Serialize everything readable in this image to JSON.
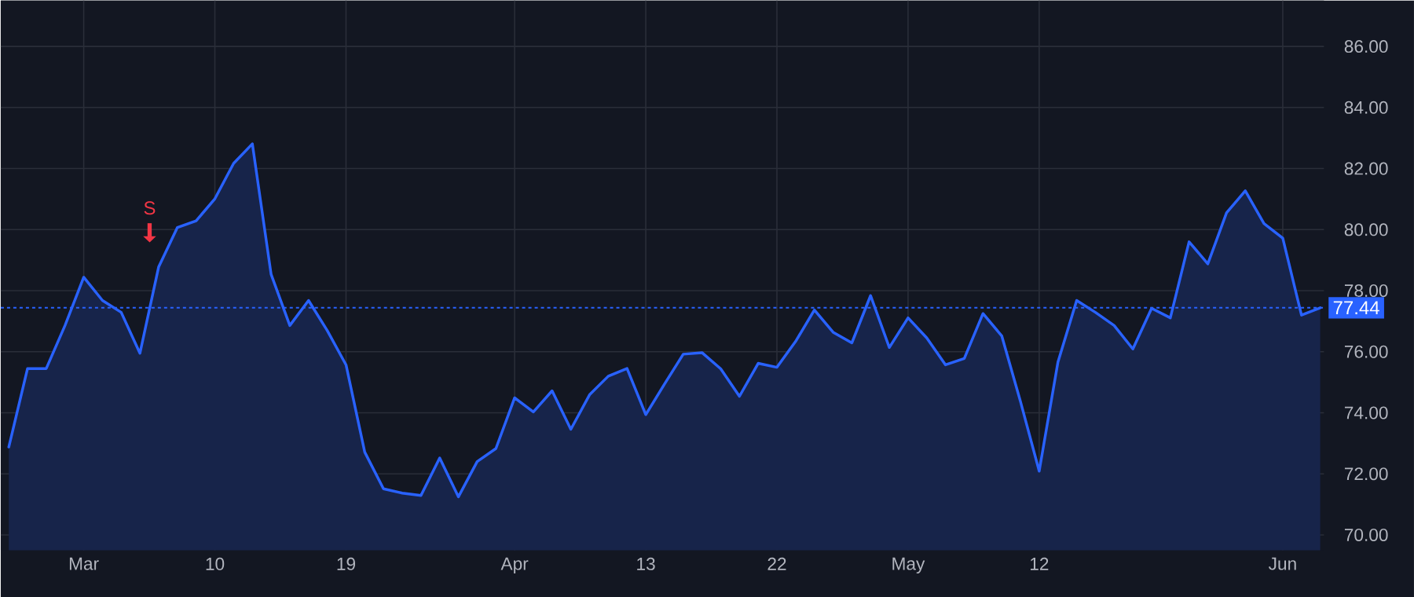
{
  "chart_data": {
    "type": "area",
    "color": "#2962ff",
    "categories": [
      null,
      null,
      null,
      null,
      "Mar",
      null,
      null,
      null,
      null,
      null,
      null,
      "10",
      null,
      null,
      null,
      null,
      null,
      null,
      "19",
      null,
      null,
      null,
      null,
      null,
      null,
      null,
      null,
      "Apr",
      null,
      null,
      null,
      null,
      null,
      null,
      "13",
      null,
      null,
      null,
      null,
      null,
      null,
      "22",
      null,
      null,
      null,
      null,
      null,
      null,
      "May",
      null,
      null,
      null,
      null,
      null,
      null,
      "12",
      null,
      null,
      null,
      null,
      null,
      null,
      null,
      null,
      null,
      null,
      null,
      null,
      "Jun",
      null,
      null
    ],
    "values": [
      72.88,
      75.45,
      75.45,
      76.86,
      78.44,
      77.68,
      77.29,
      75.95,
      78.78,
      80.07,
      80.29,
      81.01,
      82.17,
      82.81,
      78.54,
      76.86,
      77.68,
      76.69,
      75.57,
      72.71,
      71.51,
      71.37,
      71.29,
      72.52,
      71.25,
      72.4,
      72.83,
      74.49,
      74.03,
      74.72,
      73.46,
      74.59,
      75.2,
      75.45,
      73.94,
      74.94,
      75.92,
      75.97,
      75.44,
      74.54,
      75.62,
      75.49,
      76.34,
      77.37,
      76.64,
      76.29,
      77.84,
      76.14,
      77.11,
      76.45,
      75.57,
      75.78,
      77.25,
      76.52,
      74.37,
      72.09,
      75.66,
      77.68,
      77.29,
      76.86,
      76.09,
      77.42,
      77.11,
      79.6,
      78.88,
      80.55,
      81.27,
      80.2,
      79.72,
      77.2,
      77.44
    ],
    "ylim": [
      69.5,
      87.5
    ],
    "yticks": [
      {
        "value": 70,
        "label": "70.00"
      },
      {
        "value": 72,
        "label": "72.00"
      },
      {
        "value": 74,
        "label": "74.00"
      },
      {
        "value": 76,
        "label": "76.00"
      },
      {
        "value": 78,
        "label": "78.00"
      },
      {
        "value": 80,
        "label": "80.00"
      },
      {
        "value": 82,
        "label": "82.00"
      },
      {
        "value": 84,
        "label": "84.00"
      },
      {
        "value": 86,
        "label": "86.00"
      }
    ],
    "grid": true,
    "ref_lines": [
      {
        "axis": "y",
        "value": 77.44,
        "label": "77.44",
        "color": "#2962ff",
        "line_style": "dotted"
      }
    ],
    "annotations": [
      "S"
    ]
  }
}
